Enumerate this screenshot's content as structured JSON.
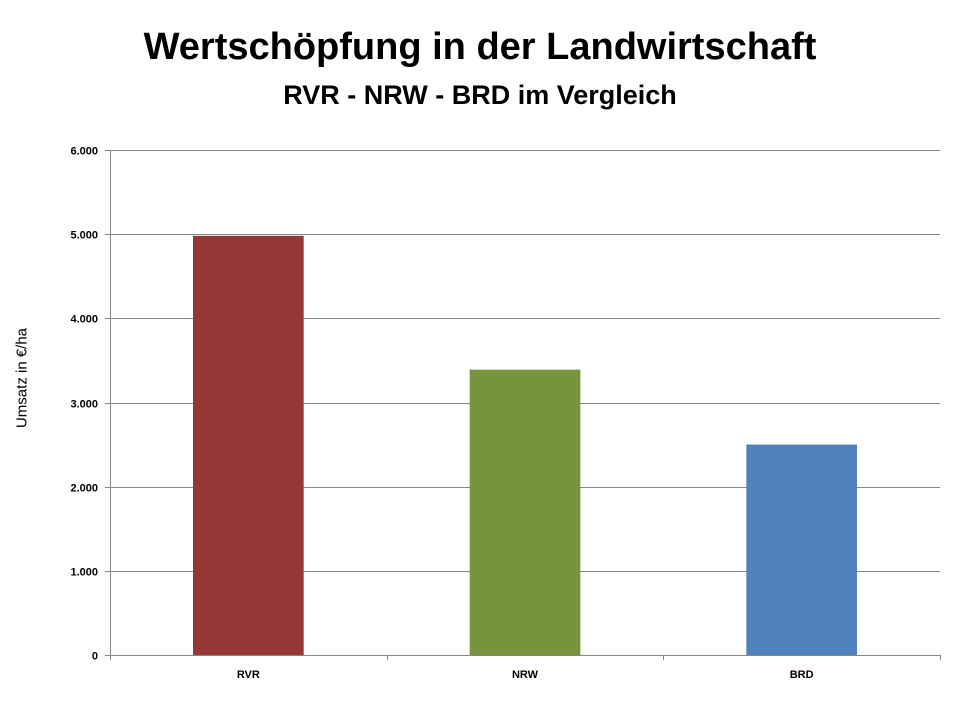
{
  "chart_data": {
    "type": "bar",
    "title": "Wertschöpfung in der Landwirtschaft",
    "subtitle": "RVR - NRW - BRD im Vergleich",
    "xlabel": "",
    "ylabel": "Umsatz in €/ha",
    "categories": [
      "RVR",
      "NRW",
      "BRD"
    ],
    "values": [
      4980,
      3390,
      2500
    ],
    "colors": [
      "#953735",
      "#77933c",
      "#4f81bd"
    ],
    "ylim": [
      0,
      6000
    ],
    "yticks": [
      0,
      1000,
      2000,
      3000,
      4000,
      5000,
      6000
    ],
    "ytick_labels": [
      "0",
      "1.000",
      "2.000",
      "3.000",
      "4.000",
      "5.000",
      "6.000"
    ],
    "grid": true,
    "legend": "none"
  }
}
